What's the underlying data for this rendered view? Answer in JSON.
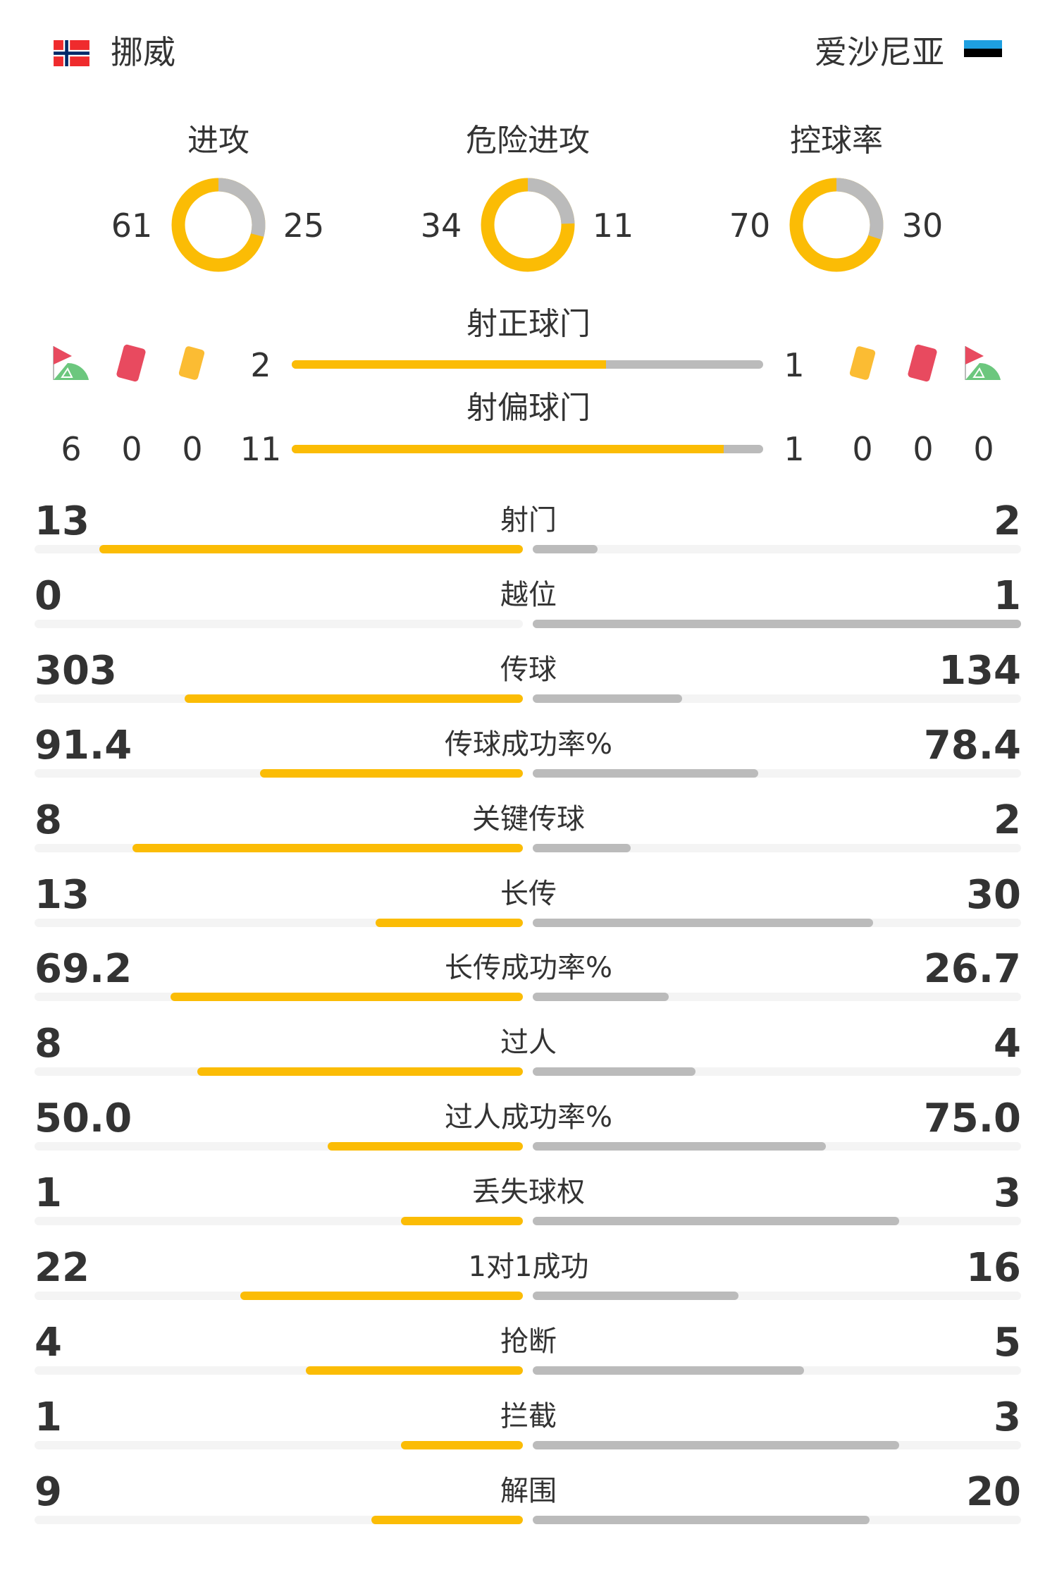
{
  "colors": {
    "home": "#FBBC05",
    "away": "#BBBBBB",
    "track": "#F4F4F4",
    "text": "#333333"
  },
  "header": {
    "home": {
      "name": "挪威",
      "flag": "norway-flag-icon"
    },
    "away": {
      "name": "爱沙尼亚",
      "flag": "estonia-flag-icon"
    }
  },
  "donuts": [
    {
      "label": "进攻",
      "home": 61,
      "away": 25
    },
    {
      "label": "危险进攻",
      "home": 34,
      "away": 11
    },
    {
      "label": "控球率",
      "home": 70,
      "away": 30
    }
  ],
  "shots": {
    "on_target": {
      "label": "射正球门",
      "home": 2,
      "away": 1
    },
    "off_target": {
      "label": "射偏球门",
      "home": 11,
      "away": 1
    }
  },
  "discipline": {
    "home": {
      "corners": 6,
      "red_cards": 0,
      "yellow_cards": 0
    },
    "away": {
      "corners": 0,
      "red_cards": 0,
      "yellow_cards": 0
    },
    "icons": [
      "corner-flag-icon",
      "red-card-icon",
      "yellow-card-icon"
    ]
  },
  "stats": [
    {
      "label": "射门",
      "home": "13",
      "away": "2"
    },
    {
      "label": "越位",
      "home": "0",
      "away": "1"
    },
    {
      "label": "传球",
      "home": "303",
      "away": "134"
    },
    {
      "label": "传球成功率%",
      "home": "91.4",
      "away": "78.4"
    },
    {
      "label": "关键传球",
      "home": "8",
      "away": "2"
    },
    {
      "label": "长传",
      "home": "13",
      "away": "30"
    },
    {
      "label": "长传成功率%",
      "home": "69.2",
      "away": "26.7"
    },
    {
      "label": "过人",
      "home": "8",
      "away": "4"
    },
    {
      "label": "过人成功率%",
      "home": "50.0",
      "away": "75.0"
    },
    {
      "label": "丢失球权",
      "home": "1",
      "away": "3"
    },
    {
      "label": "1对1成功",
      "home": "22",
      "away": "16"
    },
    {
      "label": "抢断",
      "home": "4",
      "away": "5"
    },
    {
      "label": "拦截",
      "home": "1",
      "away": "3"
    },
    {
      "label": "解围",
      "home": "9",
      "away": "20"
    }
  ]
}
